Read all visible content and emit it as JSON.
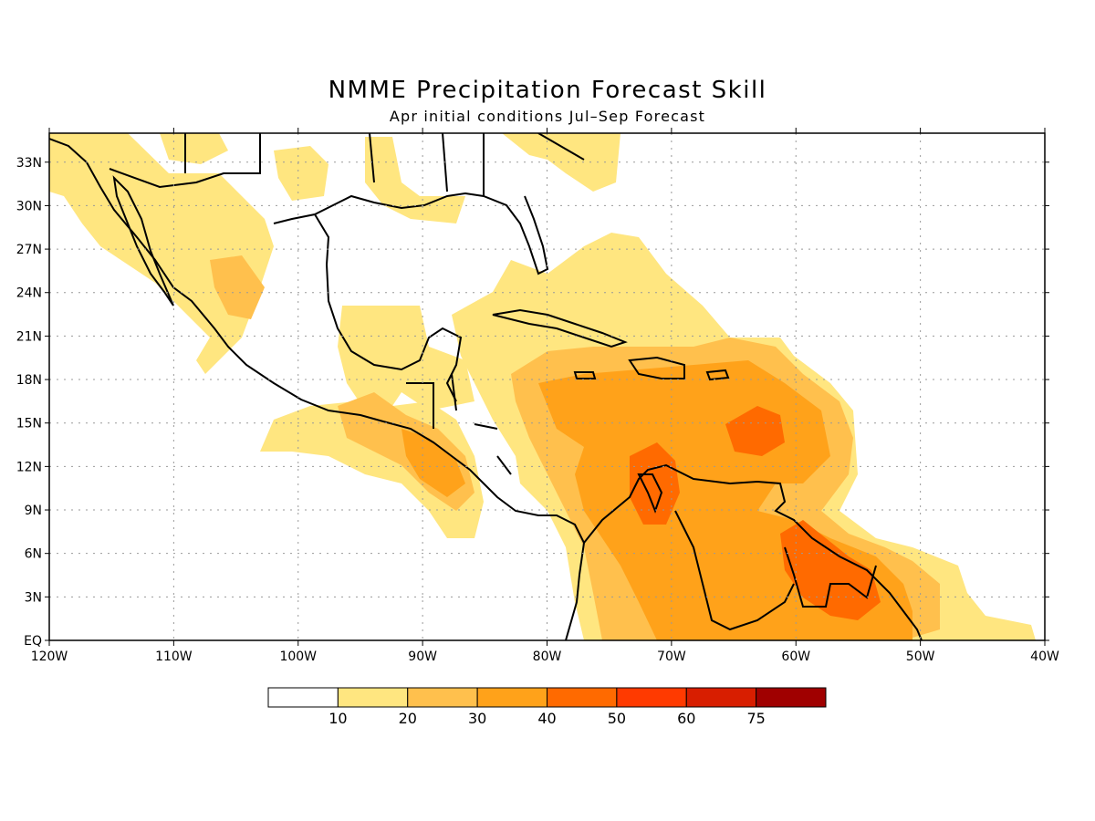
{
  "title": "NMME Precipitation Forecast Skill",
  "subtitle": "Apr initial conditions   Jul–Sep Forecast",
  "map": {
    "lon_range": [
      -120,
      -40
    ],
    "lat_range": [
      0,
      35
    ],
    "lat_ticks": [
      {
        "value": 33,
        "label": "33N"
      },
      {
        "value": 30,
        "label": "30N"
      },
      {
        "value": 27,
        "label": "27N"
      },
      {
        "value": 24,
        "label": "24N"
      },
      {
        "value": 21,
        "label": "21N"
      },
      {
        "value": 18,
        "label": "18N"
      },
      {
        "value": 15,
        "label": "15N"
      },
      {
        "value": 12,
        "label": "12N"
      },
      {
        "value": 9,
        "label": "9N"
      },
      {
        "value": 6,
        "label": "6N"
      },
      {
        "value": 3,
        "label": "3N"
      },
      {
        "value": 0,
        "label": "EQ"
      }
    ],
    "lon_ticks": [
      {
        "value": -120,
        "label": "120W"
      },
      {
        "value": -110,
        "label": "110W"
      },
      {
        "value": -100,
        "label": "100W"
      },
      {
        "value": -90,
        "label": "90W"
      },
      {
        "value": -80,
        "label": "80W"
      },
      {
        "value": -70,
        "label": "70W"
      },
      {
        "value": -60,
        "label": "60W"
      },
      {
        "value": -50,
        "label": "50W"
      },
      {
        "value": -40,
        "label": "40W"
      }
    ],
    "grid": "dotted"
  },
  "colorbar": {
    "labels": [
      "10",
      "20",
      "30",
      "40",
      "50",
      "60",
      "75"
    ],
    "colors": [
      "#ffffff",
      "#ffe680",
      "#ffc04d",
      "#ffa21a",
      "#ff6a00",
      "#ff3a00",
      "#d81e00",
      "#a00000"
    ]
  }
}
